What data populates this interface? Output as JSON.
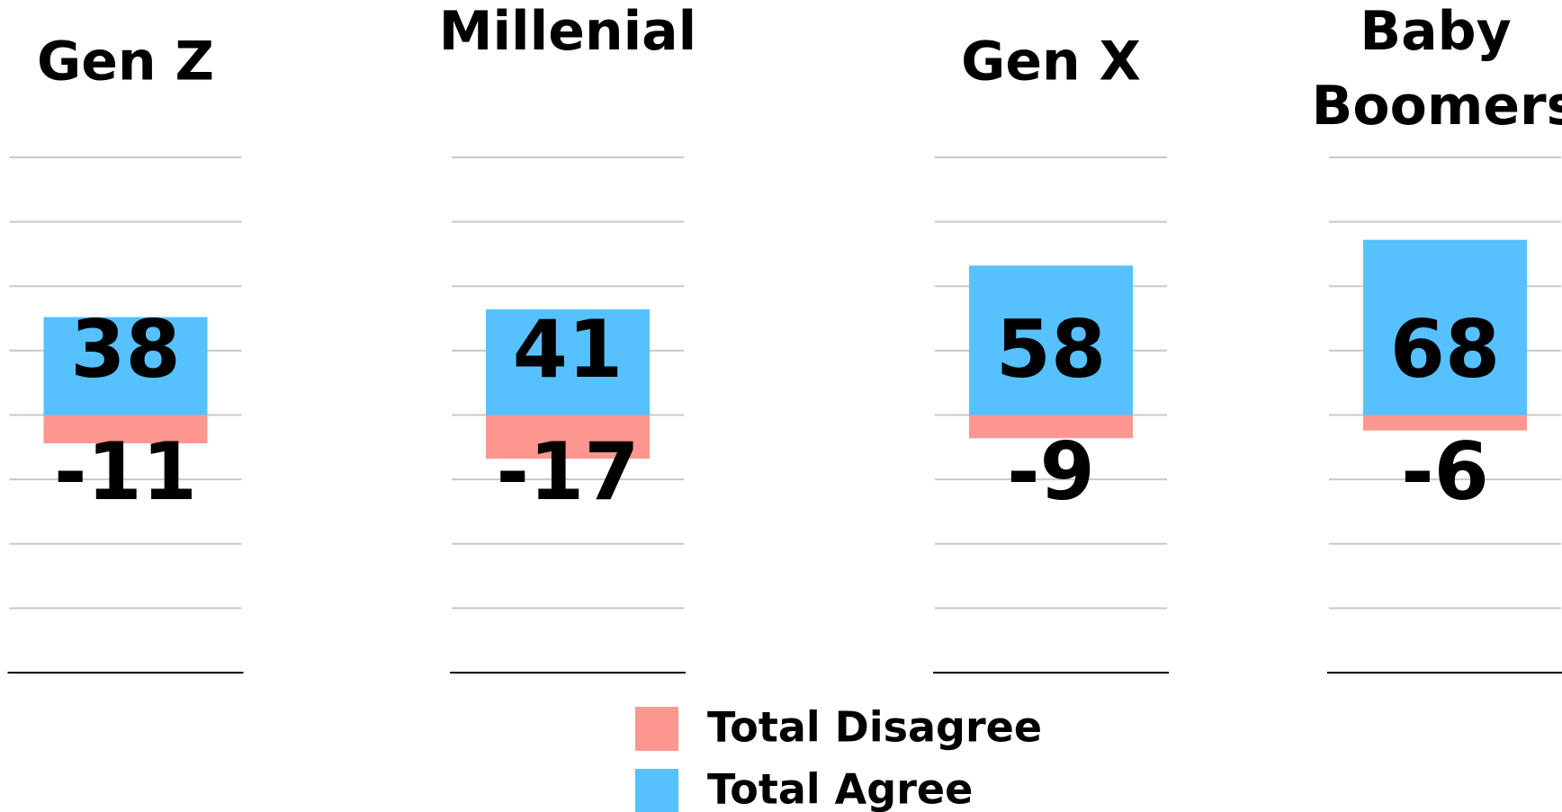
{
  "chart_data": {
    "type": "bar",
    "stacked": "diverging",
    "categories": [
      "Gen Z",
      "Millenial",
      "Gen X",
      "Baby Boomers"
    ],
    "series": [
      {
        "name": "Total Disagree",
        "color": "#fe978f",
        "values": [
          -11,
          -17,
          -9,
          -6
        ]
      },
      {
        "name": "Total Agree",
        "color": "#56c1fe",
        "values": [
          38,
          41,
          58,
          68
        ]
      }
    ],
    "ylim": [
      -100,
      100
    ],
    "yticks": [
      -100,
      -75,
      -50,
      -25,
      0,
      25,
      50,
      75,
      100
    ],
    "grid": true
  }
}
